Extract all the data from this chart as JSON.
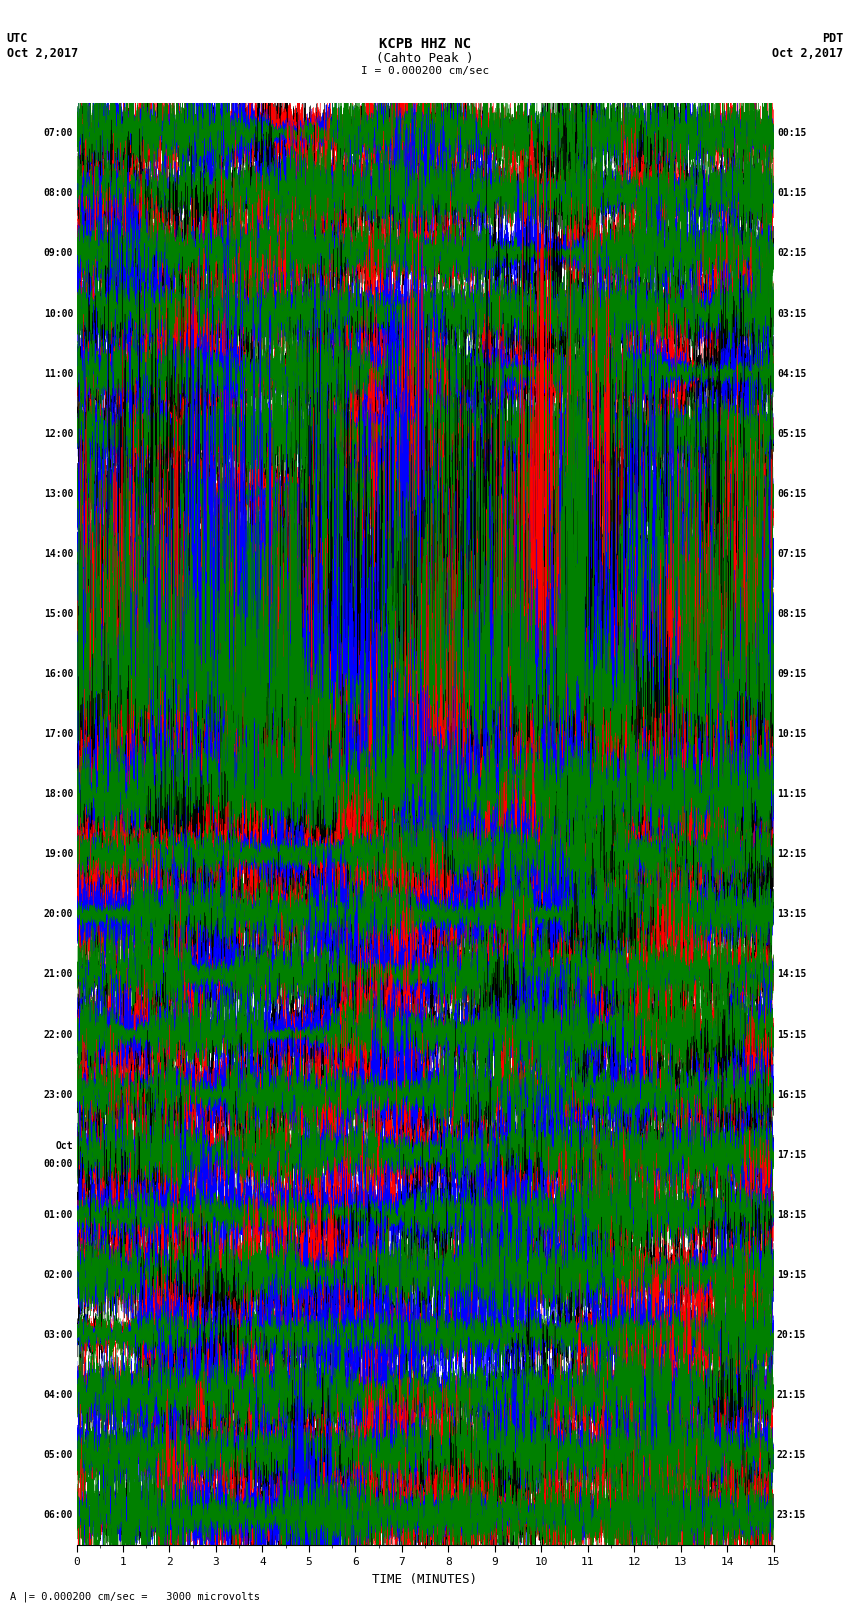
{
  "title_line1": "KCPB HHZ NC",
  "title_line2": "(Cahto Peak )",
  "scale_text": "I = 0.000200 cm/sec",
  "left_header_1": "UTC",
  "left_header_2": "Oct 2,2017",
  "right_header_1": "PDT",
  "right_header_2": "Oct 2,2017",
  "bottom_label": "TIME (MINUTES)",
  "bottom_note": "A |= 0.000200 cm/sec =   3000 microvolts",
  "left_times": [
    "07:00",
    "08:00",
    "09:00",
    "10:00",
    "11:00",
    "12:00",
    "13:00",
    "14:00",
    "15:00",
    "16:00",
    "17:00",
    "18:00",
    "19:00",
    "20:00",
    "21:00",
    "22:00",
    "23:00",
    "Oct\n00:00",
    "01:00",
    "02:00",
    "03:00",
    "04:00",
    "05:00",
    "06:00"
  ],
  "right_times": [
    "00:15",
    "01:15",
    "02:15",
    "03:15",
    "04:15",
    "05:15",
    "06:15",
    "07:15",
    "08:15",
    "09:15",
    "10:15",
    "11:15",
    "12:15",
    "13:15",
    "14:15",
    "15:15",
    "16:15",
    "17:15",
    "18:15",
    "19:15",
    "20:15",
    "21:15",
    "22:15",
    "23:15"
  ],
  "n_rows": 24,
  "n_traces_per_row": 4,
  "colors": [
    "black",
    "red",
    "blue",
    "green"
  ],
  "bg_color": "white",
  "fig_width": 8.5,
  "fig_height": 16.13,
  "x_min": 0,
  "x_max": 15,
  "earthquake_rows": [
    9,
    10
  ],
  "high_amp_rows": [
    18,
    19,
    20,
    21,
    22,
    23
  ],
  "medium_amp_rows": [
    7,
    8
  ]
}
